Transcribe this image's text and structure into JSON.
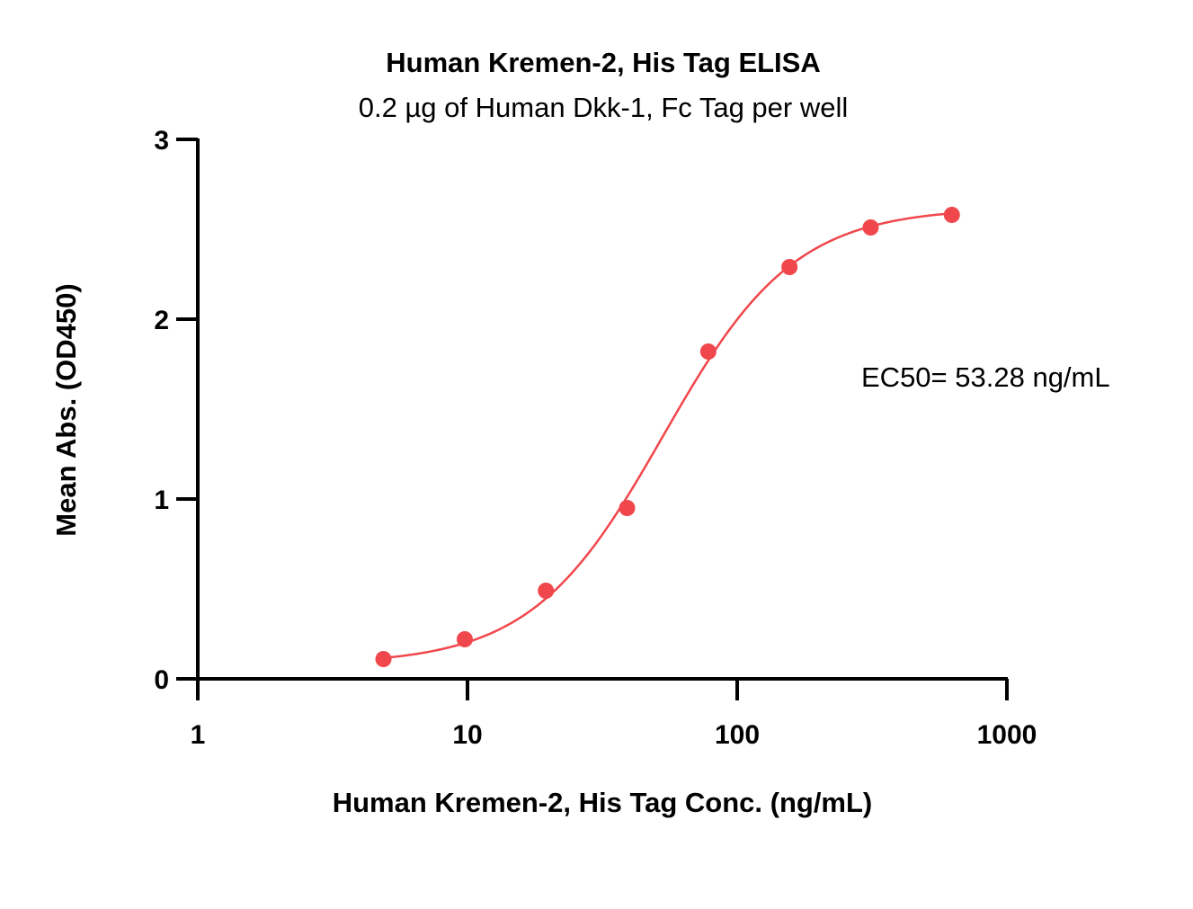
{
  "chart_data": {
    "type": "scatter",
    "title": "Human Kremen-2, His Tag ELISA",
    "subtitle": "0.2 µg of Human Dkk-1, Fc Tag per well",
    "xlabel": "Human Kremen-2, His Tag Conc. (ng/mL)",
    "ylabel": "Mean Abs. (OD450)",
    "x_scale": "log",
    "xlim": [
      1,
      1000
    ],
    "ylim": [
      0,
      3
    ],
    "x_ticks": [
      1,
      10,
      100,
      1000
    ],
    "x_tick_labels": [
      "1",
      "10",
      "100",
      "1000"
    ],
    "y_ticks": [
      0,
      1,
      2,
      3
    ],
    "y_tick_labels": [
      "0",
      "1",
      "2",
      "3"
    ],
    "grid": false,
    "series": [
      {
        "color": "#f0474c",
        "x": [
          4.88,
          9.77,
          19.53,
          39.06,
          78.13,
          156.25,
          312.5,
          625
        ],
        "y": [
          0.11,
          0.22,
          0.49,
          0.95,
          1.82,
          2.29,
          2.51,
          2.58
        ],
        "fit": "four-parameter logistic"
      }
    ],
    "annotations": [
      {
        "text": "EC50= 53.28 ng/mL"
      }
    ]
  }
}
